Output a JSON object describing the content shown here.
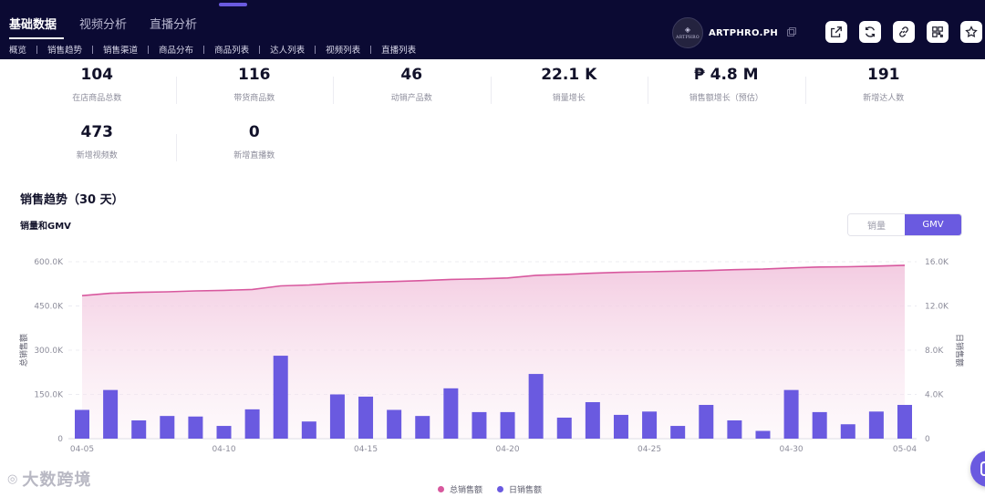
{
  "header": {
    "main_tabs": [
      {
        "label": "基础数据",
        "active": true
      },
      {
        "label": "视频分析",
        "active": false
      },
      {
        "label": "直播分析",
        "active": false
      }
    ],
    "sub_tabs": [
      "概览",
      "销售趋势",
      "销售渠道",
      "商品分布",
      "商品列表",
      "达人列表",
      "视频列表",
      "直播列表"
    ],
    "shop": {
      "name": "ARTPHRO.PH",
      "logo_text": "ARTPHRO",
      "logo_mark": "◈"
    },
    "actions": [
      "share-icon",
      "refresh-icon",
      "link-icon",
      "qrcode-icon",
      "star-icon"
    ]
  },
  "stats": {
    "row1": [
      {
        "value": "104",
        "label": "在店商品总数"
      },
      {
        "value": "116",
        "label": "带货商品数"
      },
      {
        "value": "46",
        "label": "动销产品数"
      },
      {
        "value": "22.1 K",
        "label": "销量增长"
      },
      {
        "value": "₱ 4.8 M",
        "label": "销售额增长（预估）"
      },
      {
        "value": "191",
        "label": "新增达人数"
      }
    ],
    "row2": [
      {
        "value": "473",
        "label": "新增视频数"
      },
      {
        "value": "0",
        "label": "新增直播数"
      }
    ]
  },
  "section": {
    "title": "销售趋势（30 天）",
    "chart_title": "销量和GMV"
  },
  "toggle": {
    "options": [
      "销量",
      "GMV"
    ],
    "active": "GMV"
  },
  "legend": [
    {
      "label": "总销售额",
      "color": "#d8589e"
    },
    {
      "label": "日销售额",
      "color": "#6a5ae0"
    }
  ],
  "watermark": {
    "mark": "◎",
    "text": "大数跨境"
  },
  "chart_data": {
    "type": "bar",
    "x": [
      "04-05",
      "04-06",
      "04-07",
      "04-08",
      "04-09",
      "04-10",
      "04-11",
      "04-12",
      "04-13",
      "04-14",
      "04-15",
      "04-16",
      "04-17",
      "04-18",
      "04-19",
      "04-20",
      "04-21",
      "04-22",
      "04-23",
      "04-24",
      "04-25",
      "04-26",
      "04-27",
      "04-28",
      "04-29",
      "04-30",
      "05-01",
      "05-02",
      "05-03",
      "05-04"
    ],
    "x_tick_labels": [
      "04-05",
      "04-10",
      "04-15",
      "04-20",
      "04-25",
      "04-30",
      "05-04"
    ],
    "series": [
      {
        "name": "总销售额",
        "kind": "area-line",
        "axis": "left",
        "color": "#d8589e",
        "values": [
          485000,
          493000,
          496000,
          498000,
          501000,
          503000,
          506000,
          518000,
          521000,
          527000,
          530000,
          533000,
          536000,
          540000,
          542000,
          545000,
          554000,
          557000,
          561000,
          564000,
          566000,
          568000,
          570000,
          573000,
          575000,
          579000,
          582000,
          583000,
          585000,
          588000
        ]
      },
      {
        "name": "日销售额",
        "kind": "bar",
        "axis": "right",
        "color": "#6a5ae0",
        "values": [
          2600,
          4400,
          1650,
          2050,
          2000,
          1150,
          2650,
          7500,
          1550,
          4000,
          3800,
          2600,
          2050,
          4550,
          2400,
          2400,
          5850,
          1900,
          3300,
          2150,
          2450,
          1150,
          3050,
          1650,
          700,
          4400,
          2400,
          1300,
          2450,
          3050
        ]
      }
    ],
    "ylabel": "总销售额",
    "ylabel_right": "日销售额",
    "ylim": [
      0,
      600000
    ],
    "ylim_right": [
      0,
      16000
    ],
    "yticks": [
      "0",
      "150.0K",
      "300.0K",
      "450.0K",
      "600.0K"
    ],
    "yticks_right": [
      "0",
      "4.0K",
      "8.0K",
      "12.0K",
      "16.0K"
    ],
    "grid": true,
    "legend_position": "bottom-center"
  }
}
